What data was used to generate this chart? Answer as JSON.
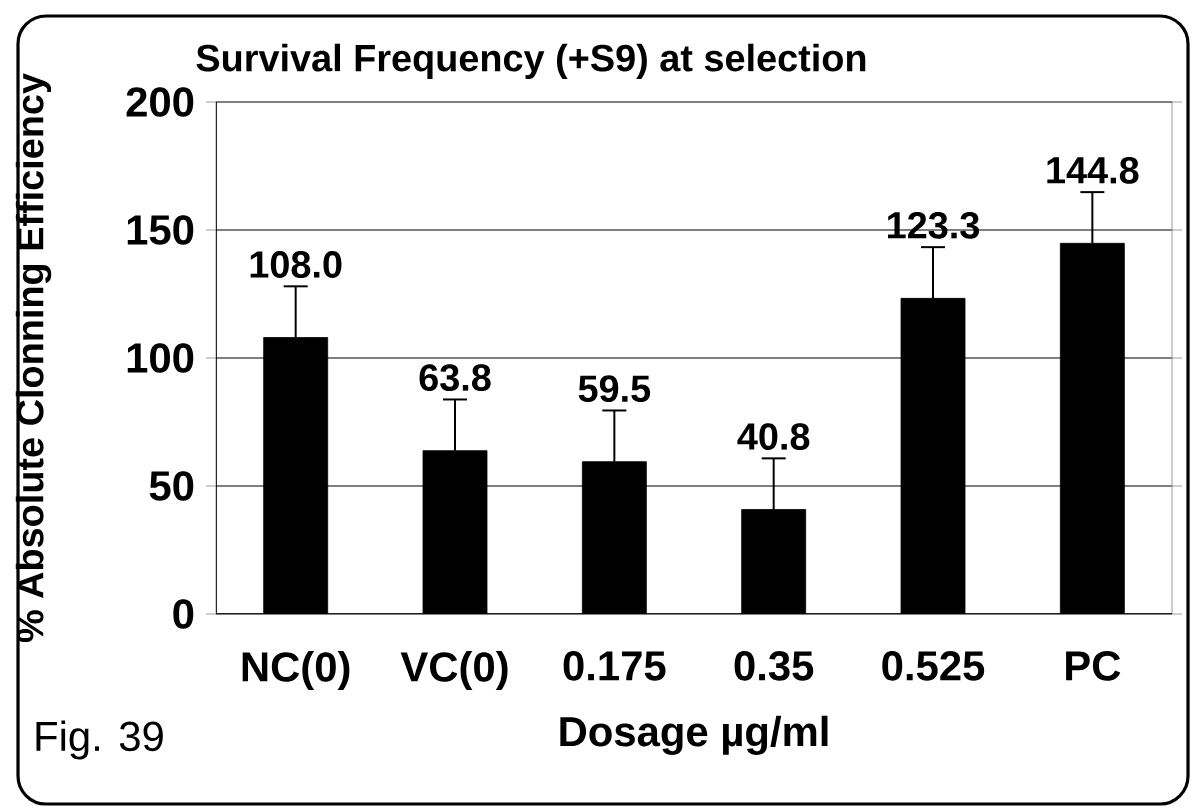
{
  "chart_data": {
    "type": "bar",
    "title": "Survival Frequency (+S9) at selection",
    "xlabel": "Dosage µg/ml",
    "ylabel": "% Absolute Clonning Efficiency",
    "categories": [
      "NC(0)",
      "VC(0)",
      "0.175",
      "0.35",
      "0.525",
      "PC"
    ],
    "values": [
      108.0,
      63.8,
      59.5,
      40.8,
      123.3,
      144.8
    ],
    "value_labels": [
      "108.0",
      "63.8",
      "59.5",
      "40.8",
      "123.3",
      "144.8"
    ],
    "errors": [
      20,
      20,
      20,
      20,
      20,
      20
    ],
    "color": "#000000",
    "ylim": [
      0,
      200
    ],
    "yticks": [
      0,
      50,
      100,
      150,
      200
    ],
    "grid": "y",
    "annotations": [
      "Fig. 39"
    ]
  }
}
